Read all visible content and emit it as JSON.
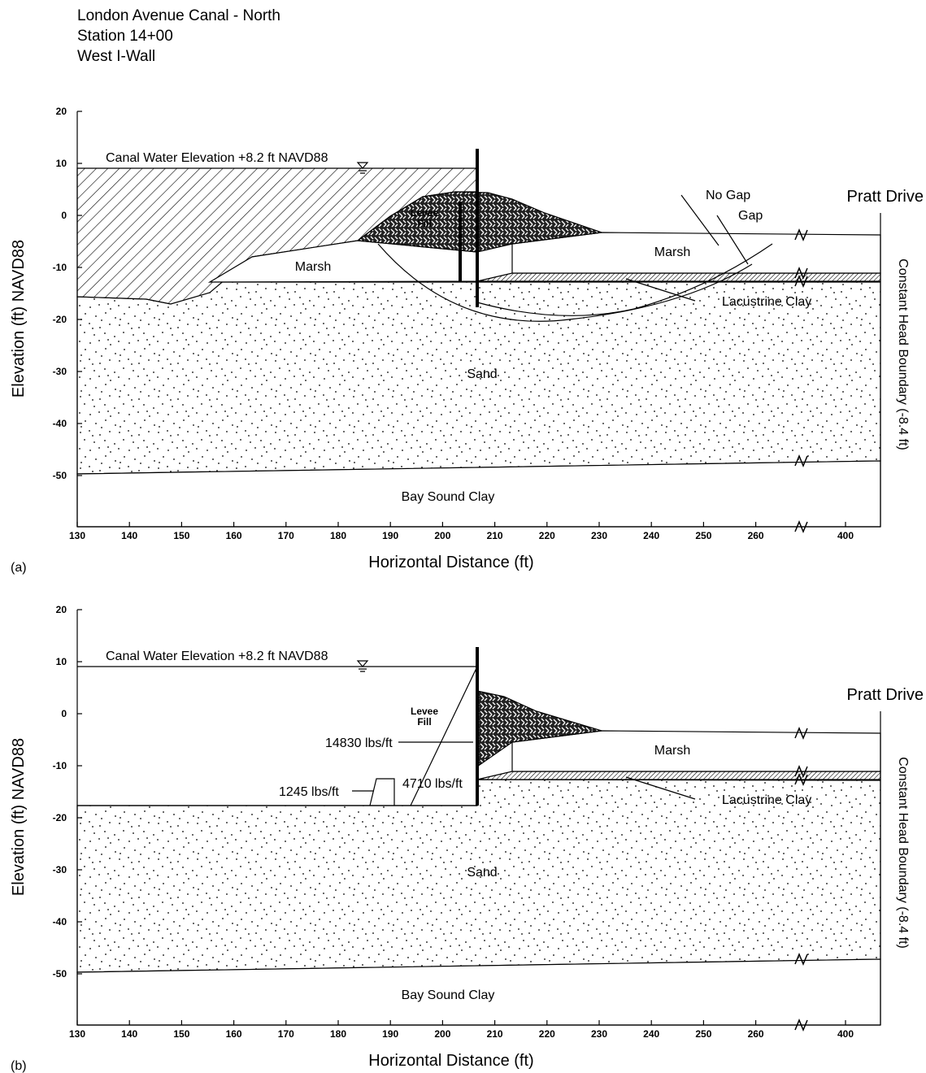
{
  "header": {
    "lines": [
      "London Avenue Canal - North",
      "Station 14+00",
      "West I-Wall"
    ]
  },
  "panels": [
    {
      "label": "(a)",
      "y_axis_label": "Elevation (ft) NAVD88",
      "x_axis_label": "Horizontal Distance (ft)",
      "right_label": "Constant Head Boundary (-8.4 ft)",
      "top_right_label": "Pratt Drive",
      "yticks": [
        20,
        10,
        0,
        -10,
        -20,
        -30,
        -40,
        -50
      ],
      "xticks": [
        130,
        140,
        150,
        160,
        170,
        180,
        190,
        200,
        210,
        220,
        230,
        240,
        250,
        260,
        400
      ],
      "labels": {
        "water": "Canal Water Elevation +8.2 ft NAVD88",
        "levee": [
          "Levee",
          "Fill"
        ],
        "marsh_left": "Marsh",
        "marsh_right": "Marsh",
        "no_gap": "No Gap",
        "gap": "Gap",
        "clay": "Lacustrine Clay",
        "sand": "Sand",
        "bay": "Bay Sound Clay"
      }
    },
    {
      "label": "(b)",
      "y_axis_label": "Elevation (ft) NAVD88",
      "x_axis_label": "Horizontal Distance (ft)",
      "right_label": "Constant Head Boundary (-8.4 ft)",
      "top_right_label": "Pratt Drive",
      "yticks": [
        20,
        10,
        0,
        -10,
        -20,
        -30,
        -40,
        -50
      ],
      "xticks": [
        130,
        140,
        150,
        160,
        170,
        180,
        190,
        200,
        210,
        220,
        230,
        240,
        250,
        260,
        400
      ],
      "labels": {
        "water": "Canal Water Elevation +8.2 ft NAVD88",
        "levee": [
          "Levee",
          "Fill"
        ],
        "marsh_right": "Marsh",
        "force_total": "14830 lbs/ft",
        "force_mid": "4710 lbs/ft",
        "force_small": "1245 lbs/ft",
        "clay": "Lacustrine Clay",
        "sand": "Sand",
        "bay": "Bay Sound Clay"
      }
    }
  ]
}
